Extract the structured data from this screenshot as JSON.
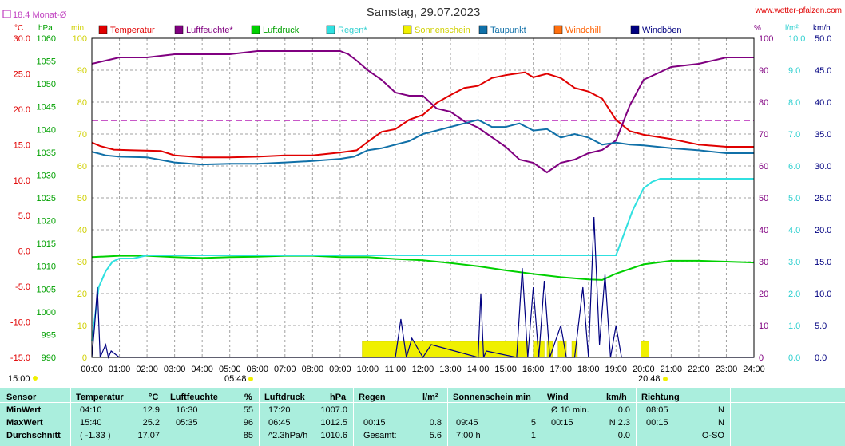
{
  "header": {
    "title": "Samstag, 29.07.2023",
    "site": "www.wetter-pfalzen.com",
    "avg_label": "18.4 Monat-Ø"
  },
  "colors": {
    "temperature": "#e00000",
    "humidity": "#800080",
    "pressure": "#00d000",
    "rain": "#30e0e0",
    "sun": "#f0f000",
    "dewpoint": "#1070a8",
    "windchill": "#ff7010",
    "gust": "#000080",
    "avg_line": "#c040c0",
    "grid": "#a0a0a0",
    "table_bg": "#aaeedd"
  },
  "chart_data": {
    "type": "line",
    "title": "Samstag, 29.07.2023",
    "x_tick_labels": [
      "00:00",
      "01:00",
      "02:00",
      "03:00",
      "04:00",
      "05:00",
      "06:00",
      "07:00",
      "08:00",
      "09:00",
      "10:00",
      "11:00",
      "12:00",
      "13:00",
      "14:00",
      "15:00",
      "16:00",
      "17:00",
      "18:00",
      "19:00",
      "20:00",
      "21:00",
      "22:00",
      "23:00",
      "24:00"
    ],
    "sunrise": "05:48",
    "sunset": "20:48",
    "legend": [
      "Temperatur",
      "Luftfeuchte*",
      "Luftdruck",
      "Regen*",
      "Sonnenschein",
      "Taupunkt",
      "Windchill",
      "Windböen"
    ],
    "axes": {
      "temp_unit": "°C",
      "temp_ticks": [
        "30.0",
        "25.0",
        "20.0",
        "15.0",
        "10.0",
        "5.0",
        "0.0",
        "-5.0",
        "-10.0",
        "-15.0"
      ],
      "pressure_unit": "hPa",
      "pressure_ticks": [
        "1060",
        "1055",
        "1050",
        "1045",
        "1040",
        "1035",
        "1030",
        "1025",
        "1020",
        "1015",
        "1010",
        "1005",
        "1000",
        "995",
        "990"
      ],
      "min_unit": "min",
      "min_ticks": [
        "100",
        "90",
        "80",
        "70",
        "60",
        "50",
        "40",
        "30",
        "20",
        "10",
        "0"
      ],
      "hum_unit": "%",
      "hum_ticks": [
        "100",
        "90",
        "80",
        "70",
        "60",
        "50",
        "40",
        "30",
        "20",
        "10",
        "0"
      ],
      "rain_unit": "l/m²",
      "rain_ticks": [
        "10.0",
        "9.0",
        "8.0",
        "7.0",
        "6.0",
        "5.0",
        "4.0",
        "3.0",
        "2.0",
        "1.0",
        "0.0"
      ],
      "wind_unit": "km/h",
      "wind_ticks": [
        "50.0",
        "45.0",
        "40.0",
        "35.0",
        "30.0",
        "25.0",
        "20.0",
        "15.0",
        "10.0",
        "5.0",
        "0.0"
      ],
      "temp_range": [
        -15,
        30
      ],
      "pressure_range": [
        990,
        1060
      ],
      "humidity_range": [
        0,
        100
      ],
      "rain_range": [
        0,
        10
      ],
      "wind_range": [
        0,
        50
      ]
    },
    "monthly_avg_temp": 18.4,
    "series": [
      {
        "name": "Temperatur",
        "color_key": "temperature",
        "axis": "temp",
        "x": [
          0,
          0.3,
          0.8,
          1.5,
          2.5,
          3.0,
          4.0,
          5.0,
          6.0,
          7.0,
          8.0,
          9.0,
          9.6,
          10.0,
          10.5,
          11.0,
          11.5,
          12.0,
          12.5,
          13.0,
          13.5,
          14.0,
          14.5,
          15.0,
          15.5,
          15.7,
          16.0,
          16.5,
          17.0,
          17.5,
          18.0,
          18.5,
          19.0,
          19.5,
          20.0,
          21.0,
          22.0,
          23.0,
          24.0
        ],
        "y": [
          15.3,
          14.8,
          14.3,
          14.2,
          14.1,
          13.5,
          13.2,
          13.2,
          13.3,
          13.5,
          13.5,
          13.9,
          14.2,
          15.4,
          16.8,
          17.2,
          18.5,
          19.2,
          20.9,
          22.0,
          23.0,
          23.3,
          24.4,
          24.8,
          25.1,
          25.2,
          24.5,
          25.0,
          24.4,
          23.0,
          22.5,
          21.5,
          18.5,
          16.9,
          16.4,
          15.8,
          15.0,
          14.7,
          14.7
        ]
      },
      {
        "name": "Luftfeuchte*",
        "color_key": "humidity",
        "axis": "humidity",
        "x": [
          0,
          0.5,
          1.0,
          2.0,
          3.0,
          4.0,
          5.0,
          6.0,
          7.0,
          8.0,
          9.0,
          9.3,
          9.6,
          10.0,
          10.5,
          11.0,
          11.5,
          12.0,
          12.5,
          13.0,
          13.5,
          14.0,
          14.5,
          15.0,
          15.5,
          16.0,
          16.5,
          17.0,
          17.5,
          18.0,
          18.5,
          19.0,
          19.5,
          20.0,
          21.0,
          22.0,
          23.0,
          24.0
        ],
        "y": [
          92,
          93,
          94,
          94,
          95,
          95,
          95,
          96,
          96,
          96,
          96,
          95,
          93,
          90,
          87,
          83,
          82,
          82,
          78,
          77,
          74,
          72,
          69,
          66,
          62,
          61,
          58,
          61,
          62,
          64,
          65,
          68,
          79,
          87,
          91,
          92,
          94,
          94
        ]
      },
      {
        "name": "Luftdruck",
        "color_key": "pressure",
        "axis": "pressure",
        "x": [
          0,
          1.0,
          2.0,
          3.0,
          4.0,
          5.0,
          6.0,
          7.0,
          8.0,
          9.0,
          10.0,
          11.0,
          12.0,
          13.0,
          14.0,
          15.0,
          16.0,
          17.0,
          18.0,
          18.5,
          19.0,
          20.0,
          21.0,
          22.0,
          23.0,
          24.0
        ],
        "y": [
          1012.0,
          1012.3,
          1012.3,
          1012.0,
          1011.8,
          1012.0,
          1012.1,
          1012.3,
          1012.3,
          1012.0,
          1012.0,
          1011.6,
          1011.3,
          1010.7,
          1010.0,
          1009.1,
          1008.3,
          1007.6,
          1007.1,
          1007.0,
          1008.4,
          1010.4,
          1011.2,
          1011.2,
          1011.0,
          1010.8
        ]
      },
      {
        "name": "Regen*",
        "color_key": "rain",
        "axis": "rain",
        "x": [
          0,
          0.25,
          0.5,
          0.75,
          1.0,
          1.5,
          2.0,
          3.0,
          18.0,
          18.5,
          19.0,
          19.3,
          19.6,
          20.0,
          20.3,
          20.6,
          21.0,
          22.0,
          24.0
        ],
        "y": [
          0.5,
          2.2,
          2.7,
          3.0,
          3.1,
          3.1,
          3.2,
          3.2,
          3.2,
          3.2,
          3.2,
          3.9,
          4.6,
          5.3,
          5.5,
          5.6,
          5.6,
          5.6,
          5.6
        ]
      },
      {
        "name": "Taupunkt",
        "color_key": "dewpoint",
        "axis": "temp",
        "x": [
          0,
          0.5,
          1.0,
          2.0,
          3.0,
          4.0,
          5.0,
          6.0,
          7.0,
          8.0,
          9.0,
          9.5,
          10.0,
          10.5,
          11.0,
          11.5,
          12.0,
          12.5,
          13.0,
          13.5,
          14.0,
          14.5,
          15.0,
          15.5,
          16.0,
          16.5,
          17.0,
          17.5,
          18.0,
          18.5,
          19.0,
          19.5,
          20.0,
          21.0,
          22.0,
          23.0,
          24.0
        ],
        "y": [
          14.0,
          13.5,
          13.3,
          13.2,
          12.5,
          12.2,
          12.3,
          12.3,
          12.5,
          12.7,
          13.0,
          13.3,
          14.2,
          14.5,
          15.0,
          15.5,
          16.5,
          17.0,
          17.5,
          18.0,
          18.5,
          17.5,
          17.5,
          18.0,
          17.0,
          17.2,
          16.0,
          16.5,
          16.0,
          15.0,
          15.3,
          15.0,
          14.9,
          14.5,
          14.2,
          13.8,
          13.8
        ]
      },
      {
        "name": "Windböen",
        "color_key": "gust",
        "axis": "wind",
        "x": [
          0,
          0.1,
          0.2,
          0.3,
          0.5,
          0.6,
          0.7,
          1.0,
          11.0,
          11.2,
          11.4,
          11.6,
          12.0,
          12.3,
          14.0,
          14.1,
          14.2,
          14.3,
          15.4,
          15.6,
          15.8,
          16.0,
          16.2,
          16.4,
          16.6,
          17.0,
          17.2,
          17.5,
          17.8,
          18.0,
          18.2,
          18.4,
          18.6,
          18.8,
          19.0,
          19.2,
          24.0
        ],
        "y": [
          0,
          5,
          11,
          0,
          2,
          0,
          1,
          0,
          0,
          6,
          0,
          3,
          0,
          2,
          0,
          10,
          0,
          1,
          0,
          14,
          0,
          11,
          0,
          12,
          0,
          5,
          0,
          0,
          11,
          0,
          22,
          2,
          13,
          0,
          5,
          0,
          0
        ]
      }
    ],
    "sunshine_minutes": {
      "name": "Sonnenschein",
      "bars_hours": [
        [
          9.8,
          15.8
        ],
        [
          16.0,
          16.4
        ],
        [
          16.5,
          16.7
        ],
        [
          16.9,
          17.2
        ],
        [
          17.4,
          17.6
        ],
        [
          19.9,
          20.2
        ]
      ]
    }
  },
  "table": {
    "headers": {
      "sensor": "Sensor",
      "temp": "Temperatur",
      "temp_unit": "°C",
      "hum": "Luftfeuchte",
      "hum_unit": "%",
      "press": "Luftdruck",
      "press_unit": "hPa",
      "rain": "Regen",
      "rain_unit": "l/m²",
      "sun": "Sonnenschein min",
      "wind": "Wind",
      "wind_unit": "km/h",
      "dir": "Richtung"
    },
    "rows": [
      {
        "label": "MinWert",
        "temp_time": "04:10",
        "temp_val": "12.9",
        "hum_time": "16:30",
        "hum_val": "55",
        "press_time": "17:20",
        "press_val": "1007.0",
        "rain_time": "",
        "rain_val": "",
        "sun_time": "",
        "sun_val": "",
        "wind_time": "Ø 10 min.",
        "wind_val": "0.0",
        "dir_time": "08:05",
        "dir_val": "N"
      },
      {
        "label": "MaxWert",
        "temp_time": "15:40",
        "temp_val": "25.2",
        "hum_time": "05:35",
        "hum_val": "96",
        "press_time": "06:45",
        "press_val": "1012.5",
        "rain_time": "00:15",
        "rain_val": "0.8",
        "sun_time": "09:45",
        "sun_val": "5",
        "wind_time": "00:15",
        "wind_val": "N 2.3",
        "dir_time": "00:15",
        "dir_val": "N"
      },
      {
        "label": "Durchschnitt",
        "temp_time": "( -1.33 )",
        "temp_val": "17.07",
        "hum_time": "",
        "hum_val": "85",
        "press_time": "^2.3hPa/h",
        "press_val": "1010.6",
        "rain_time": "Gesamt:",
        "rain_val": "5.6",
        "sun_time": "7:00 h",
        "sun_val": "1",
        "wind_time": "",
        "wind_val": "0.0",
        "dir_time": "",
        "dir_val": "O-SO"
      }
    ]
  }
}
